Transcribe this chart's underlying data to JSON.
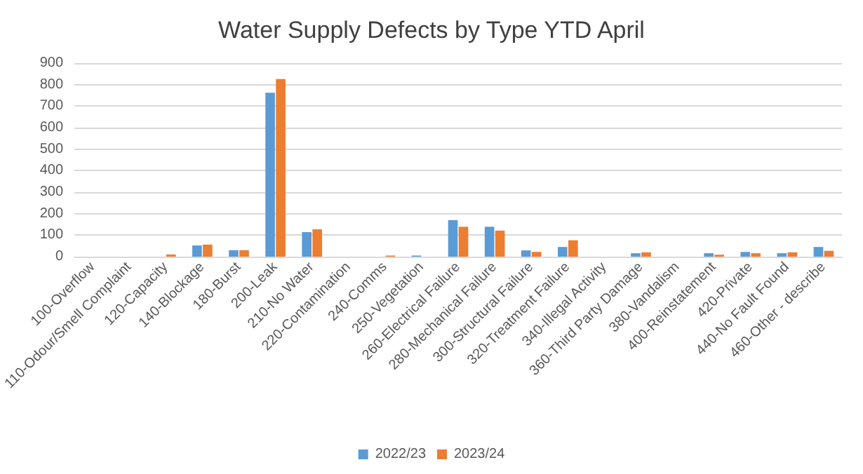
{
  "chart_data": {
    "type": "bar",
    "title": "Water Supply Defects by Type YTD April",
    "categories": [
      "100-Overflow",
      "110-Odour/Smell Complaint",
      "120-Capacity",
      "140-Blockage",
      "180-Burst",
      "200-Leak",
      "210-No Water",
      "220-Contamination",
      "240-Comms",
      "250-Vegetation",
      "260-Electrical Failure",
      "280-Mechanical Failure",
      "300-Structural Failure",
      "320-Treatment Failure",
      "340-Illegal Activity",
      "360-Third Party Damage",
      "380-Vandalism",
      "400-Reinstatement",
      "420-Private",
      "440-No Fault Found",
      "460-Other - describe"
    ],
    "series": [
      {
        "name": "2022/23",
        "color": "#5b9bd5",
        "values": [
          0,
          0,
          0,
          52,
          30,
          762,
          114,
          0,
          0,
          5,
          170,
          139,
          29,
          45,
          0,
          16,
          0,
          16,
          22,
          16,
          45
        ]
      },
      {
        "name": "2023/24",
        "color": "#ed7d31",
        "values": [
          0,
          0,
          10,
          56,
          30,
          826,
          127,
          0,
          5,
          0,
          139,
          121,
          22,
          76,
          0,
          20,
          0,
          9,
          16,
          20,
          27
        ]
      }
    ],
    "ylim": [
      0,
      900
    ],
    "yticks": [
      0,
      100,
      200,
      300,
      400,
      500,
      600,
      700,
      800,
      900
    ],
    "grid": "y",
    "legend": "bottom"
  }
}
